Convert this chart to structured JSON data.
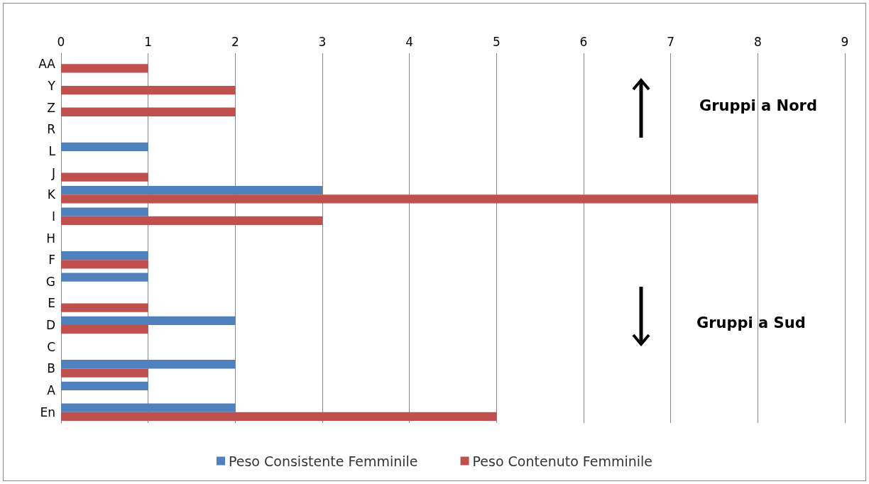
{
  "chart_data": {
    "type": "bar",
    "orientation": "horizontal",
    "categories": [
      "AA",
      "Y",
      "Z",
      "R",
      "L",
      "J",
      "K",
      "I",
      "H",
      "F",
      "G",
      "E",
      "D",
      "C",
      "B",
      "A",
      "En"
    ],
    "series": [
      {
        "name": "Peso Consistente Femminile",
        "color": "#4f81bd",
        "values": [
          0,
          0,
          0,
          0,
          1,
          0,
          3,
          1,
          0,
          1,
          1,
          0,
          2,
          0,
          2,
          1,
          2
        ]
      },
      {
        "name": "Peso Contenuto Femminile",
        "color": "#c0504d",
        "values": [
          1,
          2,
          2,
          0,
          0,
          1,
          8,
          3,
          0,
          1,
          0,
          1,
          1,
          0,
          1,
          0,
          5
        ]
      }
    ],
    "xlim": [
      0,
      9
    ],
    "xticks": [
      0,
      1,
      2,
      3,
      4,
      5,
      6,
      7,
      8,
      9
    ],
    "grid": "x",
    "legend": "bottom",
    "annotations": [
      "Gruppi a Nord",
      "Gruppi a Sud"
    ]
  }
}
